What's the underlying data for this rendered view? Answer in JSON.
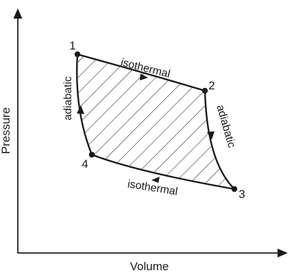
{
  "axes": {
    "x_label": "Volume",
    "y_label": "Pressure"
  },
  "points": [
    {
      "id": "1",
      "label": "1"
    },
    {
      "id": "2",
      "label": "2"
    },
    {
      "id": "3",
      "label": "3"
    },
    {
      "id": "4",
      "label": "4"
    }
  ],
  "processes": [
    {
      "from": "1",
      "to": "2",
      "label": "isothermal"
    },
    {
      "from": "2",
      "to": "3",
      "label": "adiabatic"
    },
    {
      "from": "3",
      "to": "4",
      "label": "isothermal"
    },
    {
      "from": "4",
      "to": "1",
      "label": "adiabatic"
    }
  ],
  "colors": {
    "line": "#1a1a1a",
    "hatch": "#1a1a1a",
    "background": "#ffffff"
  }
}
